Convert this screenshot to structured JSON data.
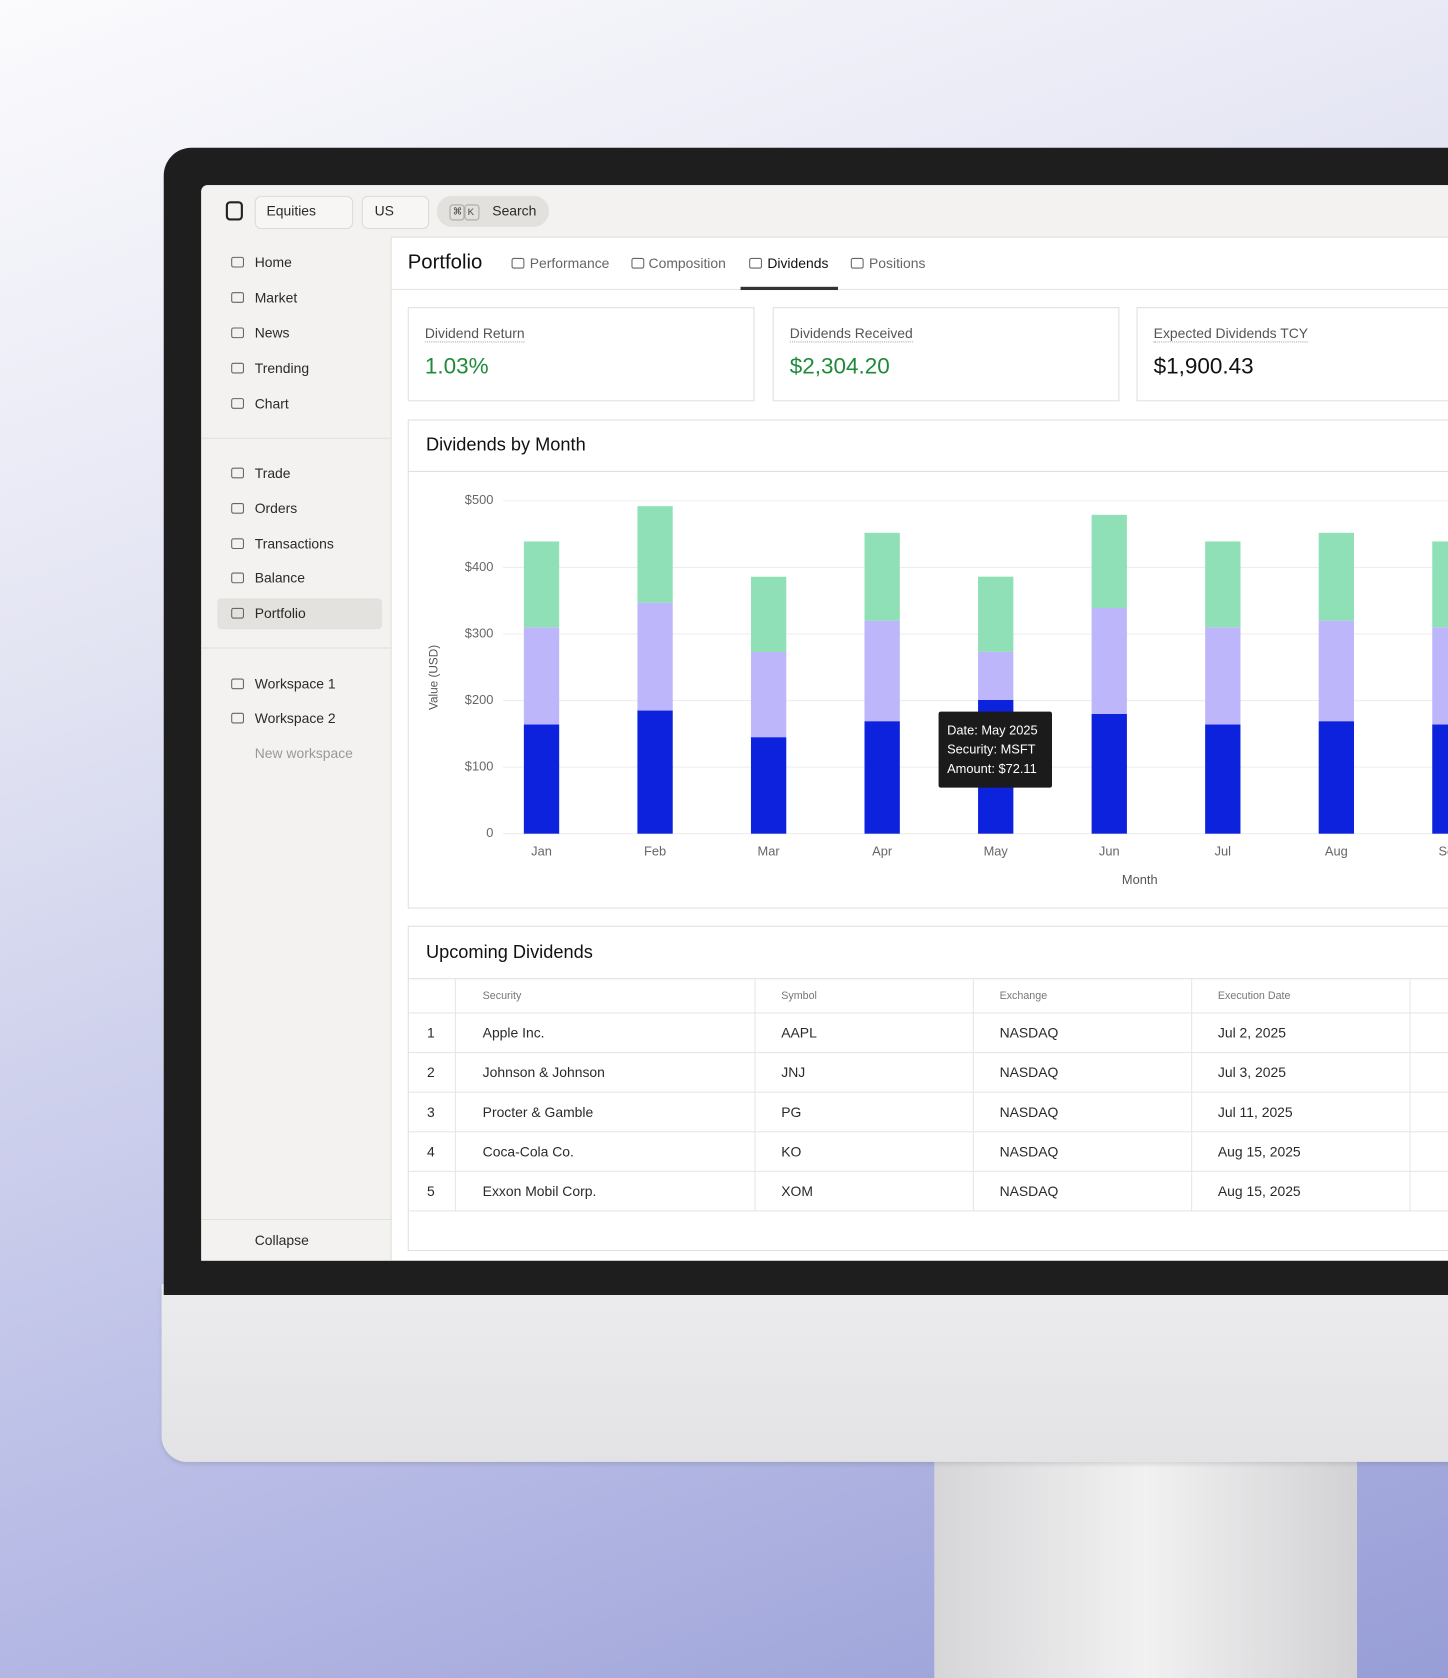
{
  "topbar": {
    "market": "Equities",
    "region": "US",
    "search_keys": [
      "⌘",
      "K"
    ],
    "search": "Search"
  },
  "sidebar": {
    "nav": [
      "Home",
      "Market",
      "News",
      "Trending",
      "Chart"
    ],
    "trade": [
      "Trade",
      "Orders",
      "Transactions",
      "Balance",
      "Portfolio"
    ],
    "workspaces": [
      "Workspace 1",
      "Workspace 2",
      "New workspace"
    ],
    "collapse": "Collapse"
  },
  "page": {
    "title": "Portfolio",
    "tabs": [
      "Performance",
      "Composition",
      "Dividends",
      "Positions"
    ]
  },
  "metrics": [
    {
      "label": "Dividend Return",
      "value": "1.03%"
    },
    {
      "label": "Dividends Received",
      "value": "$2,304.20"
    },
    {
      "label": "Expected Dividends TCY",
      "value": "$1,900.43"
    }
  ],
  "chart_data": {
    "type": "bar",
    "stacked": true,
    "title": "Dividends by Month",
    "x_label": "Month",
    "y_label": "Value (USD)",
    "categories": [
      "Jan",
      "Feb",
      "Mar",
      "Apr",
      "May",
      "Jun",
      "Jul",
      "Aug",
      "Sep"
    ],
    "series": [
      {
        "color": "#0c22dd",
        "values": [
          164,
          185,
          145,
          169,
          201,
          180,
          164,
          169,
          164
        ]
      },
      {
        "color": "#bdb6fb",
        "values": [
          146,
          162,
          128,
          151,
          72.11,
          159,
          146,
          151,
          146
        ]
      },
      {
        "color": "#8fe0b6",
        "values": [
          129,
          145,
          113,
          132,
          113,
          140,
          129,
          132,
          129
        ]
      }
    ],
    "ylim": [
      0,
      500
    ],
    "yticks": [
      0,
      {
        "value": 100,
        "label": "$100"
      },
      {
        "value": 200,
        "label": "$200"
      },
      {
        "value": 300,
        "label": "$300"
      },
      {
        "value": 400,
        "label": "$400"
      },
      {
        "value": 500,
        "label": "$500"
      }
    ],
    "grid": true,
    "tooltip": [
      "Date: May 2025",
      "Security: MSFT",
      "Amount: $72.11"
    ]
  },
  "table": {
    "title": "Upcoming Dividends",
    "columns": [
      "Security",
      "Symbol",
      "Exchange",
      "Execution Date"
    ],
    "rows": [
      [
        1,
        "Apple Inc.",
        "AAPL",
        "NASDAQ",
        "Jul 2, 2025"
      ],
      [
        2,
        "Johnson & Johnson",
        "JNJ",
        "NASDAQ",
        "Jul 3, 2025"
      ],
      [
        3,
        "Procter & Gamble",
        "PG",
        "NASDAQ",
        "Jul 11, 2025"
      ],
      [
        4,
        "Coca-Cola Co.",
        "KO",
        "NASDAQ",
        "Aug 15, 2025"
      ],
      [
        5,
        "Exxon Mobil Corp.",
        "XOM",
        "NASDAQ",
        "Aug 15, 2025"
      ]
    ]
  }
}
